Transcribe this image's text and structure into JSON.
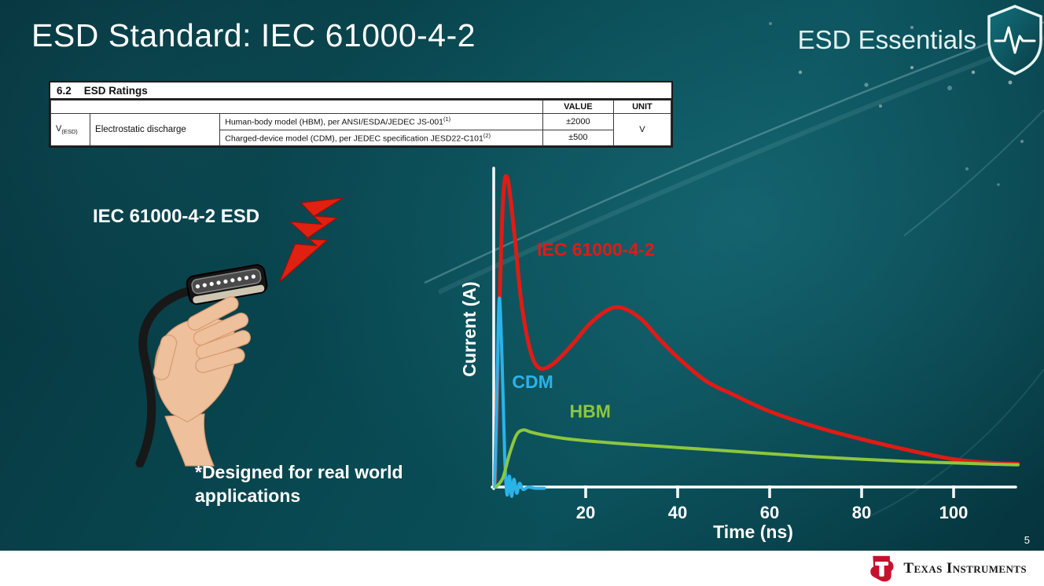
{
  "slide": {
    "title": "ESD Standard: IEC 61000-4-2",
    "brand": "ESD Essentials",
    "page_number": "5"
  },
  "ratings_table": {
    "section_number": "6.2",
    "section_title": "ESD Ratings",
    "value_header": "VALUE",
    "unit_header": "UNIT",
    "param_symbol": "V",
    "param_subscript": "(ESD)",
    "param_name": "Electrostatic discharge",
    "rows": [
      {
        "description": "Human-body model (HBM), per ANSI/ESDA/JEDEC JS-001",
        "superscript": "(1)",
        "value": "±2000"
      },
      {
        "description": "Charged-device model (CDM), per JEDEC specification JESD22-C101",
        "superscript": "(2)",
        "value": "±500"
      }
    ],
    "unit": "V"
  },
  "left_panel": {
    "caption": "IEC 61000-4-2 ESD",
    "note_line1": "*Designed for real world",
    "note_line2": "applications"
  },
  "footer": {
    "brand": "Texas Instruments"
  },
  "chart_data": {
    "type": "line",
    "title": "",
    "xlabel": "Time (ns)",
    "ylabel": "Current (A)",
    "xlim": [
      0,
      114
    ],
    "ylim": [
      -0.05,
      1.05
    ],
    "x_ticks": [
      20,
      40,
      60,
      80,
      100
    ],
    "grid": false,
    "legend_position": "inline-annotations",
    "axis_color": "#ffffff",
    "series": [
      {
        "name": "IEC 61000-4-2",
        "color": "#e01b15",
        "label_at": [
          9.4,
          0.75
        ],
        "x": [
          0.3,
          1,
          2,
          3,
          4.5,
          6,
          8,
          10,
          13,
          17,
          21,
          25,
          28,
          32,
          36,
          40,
          46,
          52,
          60,
          70,
          80,
          90,
          100,
          108,
          114
        ],
        "y": [
          0.02,
          0.45,
          0.92,
          1.0,
          0.82,
          0.6,
          0.44,
          0.385,
          0.4,
          0.46,
          0.53,
          0.575,
          0.58,
          0.545,
          0.48,
          0.42,
          0.345,
          0.3,
          0.245,
          0.195,
          0.155,
          0.12,
          0.09,
          0.078,
          0.075
        ]
      },
      {
        "name": "CDM",
        "color": "#2bb3e8",
        "label_at": [
          4.0,
          0.32
        ],
        "x": [
          0.2,
          0.7,
          1.2,
          1.8,
          2.4,
          2.9,
          3.4,
          3.9,
          4.4,
          5.0,
          5.6,
          6.4,
          7.5,
          9,
          11
        ],
        "y": [
          0.0,
          0.3,
          0.61,
          0.42,
          0.1,
          -0.025,
          0.035,
          -0.03,
          0.025,
          -0.02,
          0.012,
          -0.008,
          0.0,
          -0.004,
          -0.004
        ]
      },
      {
        "name": "HBM",
        "color": "#8dc63f",
        "label_at": [
          16.5,
          0.225
        ],
        "x": [
          0.5,
          2,
          3.5,
          5,
          6.5,
          8,
          11,
          15,
          20,
          30,
          40,
          50,
          60,
          70,
          80,
          90,
          100,
          108,
          114
        ],
        "y": [
          0.0,
          0.03,
          0.11,
          0.17,
          0.185,
          0.178,
          0.168,
          0.158,
          0.15,
          0.138,
          0.128,
          0.118,
          0.108,
          0.098,
          0.09,
          0.083,
          0.078,
          0.074,
          0.072
        ]
      }
    ]
  }
}
